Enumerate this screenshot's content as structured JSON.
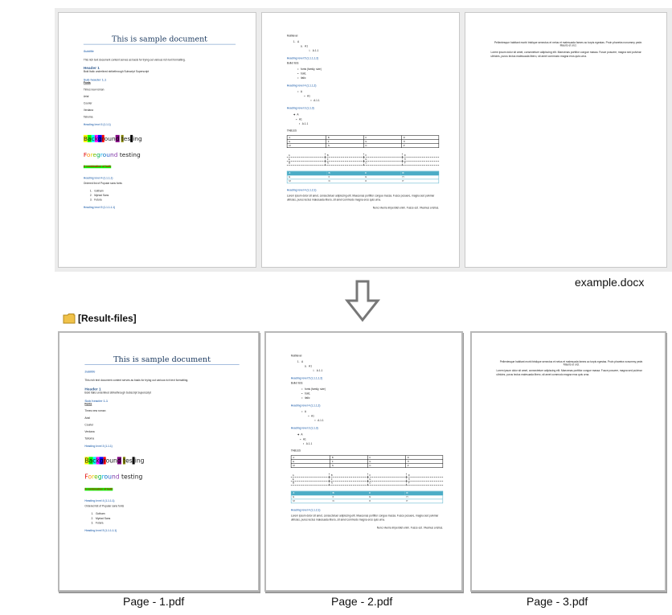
{
  "source": {
    "filename": "example.docx"
  },
  "result": {
    "folder_label": "[Result-files]",
    "files": [
      "Page - 1.pdf",
      "Page - 2.pdf",
      "Page - 3.pdf"
    ]
  },
  "colors": {
    "heading": "#4f81bd",
    "title": "#17365d",
    "table_accent": "#4bacc6",
    "folder": "#f0c24a",
    "arrow": "#777777"
  },
  "icons": {
    "folder": "folder-icon",
    "arrow": "arrow-down-icon"
  },
  "document": {
    "pages": [
      {
        "blocks": [
          {
            "type": "title",
            "text": "This is sample document"
          },
          {
            "type": "subtitle",
            "text": "Subtitle"
          },
          {
            "type": "p",
            "text": "This rich text document content serves as basis for trying out various rich text formatting."
          },
          {
            "type": "h1",
            "text": "Header 1"
          },
          {
            "type": "line",
            "text": "Bold Italic underlined strikethrough Subscript Superscript"
          },
          {
            "type": "h2",
            "text": "Sub header 1.1"
          },
          {
            "type": "u",
            "text": "Fonts"
          },
          {
            "type": "fontline",
            "text": "Times new roman"
          },
          {
            "type": "fontline",
            "text": "Arial"
          },
          {
            "type": "fontline",
            "text": "Courier"
          },
          {
            "type": "fontline",
            "text": "Verdana"
          },
          {
            "type": "fontline",
            "text": "Tahoma"
          },
          {
            "type": "h3",
            "text": "Heading level 3 (1.1.1)"
          },
          {
            "type": "segments",
            "segments": [
              {
                "t": "B",
                "bg": "#ffff00"
              },
              {
                "t": "a",
                "bg": "#00ff00"
              },
              {
                "t": "c",
                "bg": "#00ffff"
              },
              {
                "t": "k",
                "bg": "#ff00ff"
              },
              {
                "t": "g",
                "bg": "#0000ff"
              },
              {
                "t": "r",
                "bg": "#ff0000"
              },
              {
                "t": "oun"
              },
              {
                "t": "d",
                "bg": "#800080"
              },
              {
                "t": " "
              },
              {
                "t": "t",
                "bg": "#808000"
              },
              {
                "t": "es"
              },
              {
                "t": "t",
                "bg": "#000000"
              },
              {
                "t": "ing"
              }
            ]
          },
          {
            "type": "segments",
            "segments": [
              {
                "t": "F",
                "fg": "#e00000"
              },
              {
                "t": "o",
                "fg": "#ff8c00"
              },
              {
                "t": "r",
                "fg": "#e8d000"
              },
              {
                "t": "e",
                "fg": "#70c000"
              },
              {
                "t": "g",
                "fg": "#00b050"
              },
              {
                "t": "r",
                "fg": "#00b0f0"
              },
              {
                "t": "o",
                "fg": "#0070c0"
              },
              {
                "t": "u",
                "fg": "#3060d0"
              },
              {
                "t": "n",
                "fg": "#7030a0"
              },
              {
                "t": "d",
                "fg": "#9040b0"
              },
              {
                "t": " testing"
              }
            ]
          },
          {
            "type": "combo",
            "text": "A combination of both"
          },
          {
            "type": "h3",
            "text": "Heading level 4 (1.1.1.1)"
          },
          {
            "type": "p",
            "text": "Ordered list of Popular sans fonts"
          },
          {
            "type": "list",
            "items": [
              "1.   Gotham",
              "2.   Myriad Sans",
              "3.   Futura"
            ]
          },
          {
            "type": "h3",
            "text": "Heading level 5 (1.1.1.1.1)"
          }
        ]
      },
      {
        "blocks": [
          {
            "type": "line",
            "text": "Multilevel"
          },
          {
            "type": "list",
            "items": [
              "1.   A",
              "          a.   A1",
              "                      i.   A.1.1"
            ]
          },
          {
            "type": "h3",
            "text": "Heading level 5 (1.1.1.1.2)"
          },
          {
            "type": "line",
            "text": "Bullet lists"
          },
          {
            "type": "list",
            "items": [
              "      •   fonts (family, size)",
              "      •   bold,",
              "      •   italic"
            ]
          },
          {
            "type": "h3",
            "text": "Heading level 4 (1.1.1.2)"
          },
          {
            "type": "list",
            "items": [
              "      •   A",
              "               ▪   A1",
              "                        ▪   A.1.1"
            ]
          },
          {
            "type": "h3",
            "text": "Heading level 3 (1.1.3)"
          },
          {
            "type": "list",
            "items": [
              "❖  A",
              "   ➢  A1",
              "        ▪   A.1.1"
            ]
          },
          {
            "type": "line",
            "text": "TABLES"
          },
          {
            "type": "table",
            "style": "solid",
            "rows": [
              [
                "A",
                "B",
                "C",
                "D"
              ],
              [
                "E",
                "F",
                "G",
                "H"
              ],
              [
                "M",
                "N",
                "O",
                "P"
              ]
            ]
          },
          {
            "type": "table",
            "style": "dash",
            "rows": [
              [
                "A",
                "B",
                "C",
                "D"
              ],
              [
                "E",
                "F",
                "G",
                "H"
              ],
              [
                "M",
                "N",
                "O",
                "P"
              ]
            ]
          },
          {
            "type": "table",
            "style": "teal",
            "rows": [
              [
                "A",
                "B",
                "C",
                "D"
              ],
              [
                "E",
                "F",
                "G",
                "H"
              ],
              [
                "M",
                "N",
                "O",
                "P"
              ]
            ]
          },
          {
            "type": "h3",
            "text": "Heading level 4 (1.1.2.1)"
          },
          {
            "type": "just",
            "text": "Lorem ipsum dolor sit amet, consectetuer adipiscing elit. Maecenas porttitor congue massa. Fusce posuere, magna sed pulvinar ultricies, purus lectus malesuada libero, sit amet commodo magna eros quis urna."
          },
          {
            "type": "right",
            "text": "Nunc viverra imperdiet enim. Fusce est. Vivamus a tellus."
          }
        ]
      },
      {
        "blocks": [
          {
            "type": "center",
            "text": "Pellentesque habitant morbi tristique senectus et netus et malesuada fames ac turpis egestas. Proin pharetra nonummy pede. Mauris et orci."
          },
          {
            "type": "just",
            "text": "Lorem ipsum dolor sit amet, consectetuer adipiscing elit. Maecenas porttitor congue massa. Fusce posuere, magna sed pulvinar ultricies, purus lectus malesuada libero, sit amet commodo magna eros quis urna."
          }
        ]
      }
    ]
  }
}
